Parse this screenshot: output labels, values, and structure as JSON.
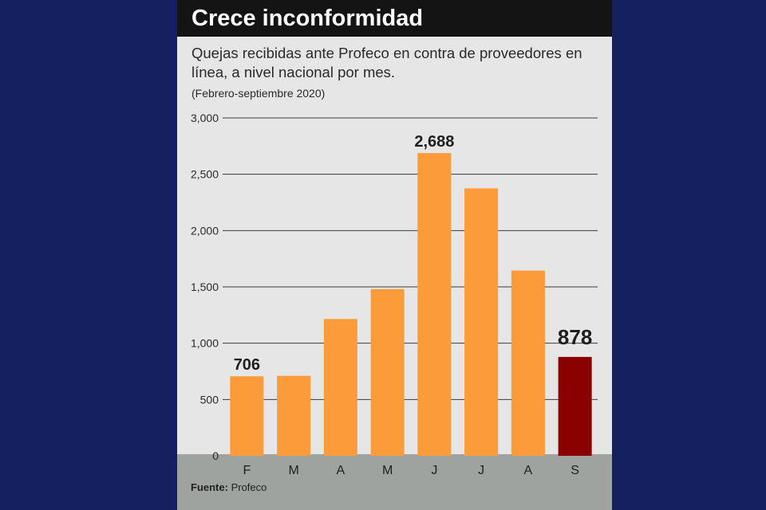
{
  "title": "Crece inconformidad",
  "subtitle": "Quejas recibidas ante Profeco en contra de proveedores en línea, a nivel nacional por mes.",
  "period": "(Febrero-septiembre 2020)",
  "source_label": "Fuente:",
  "source_value": "Profeco",
  "colors": {
    "bar": "#fb9b3a",
    "highlight": "#8b0000",
    "axis_band": "#9ea3a0"
  },
  "chart_data": {
    "type": "bar",
    "categories": [
      "F",
      "M",
      "A",
      "M",
      "J",
      "J",
      "A",
      "S"
    ],
    "values": [
      706,
      710,
      1215,
      1480,
      2688,
      2375,
      1645,
      878
    ],
    "value_labels": [
      "706",
      "",
      "",
      "",
      "2,688",
      "",
      "",
      "878"
    ],
    "highlight_index": 7,
    "yticks": [
      0,
      500,
      1000,
      1500,
      2000,
      2500,
      3000
    ],
    "ytick_labels": [
      "0",
      "500",
      "1,000",
      "1,500",
      "2,000",
      "2,500",
      "3,000"
    ],
    "ylim": [
      0,
      3000
    ],
    "xlabel": "",
    "ylabel": "",
    "grid": true
  }
}
